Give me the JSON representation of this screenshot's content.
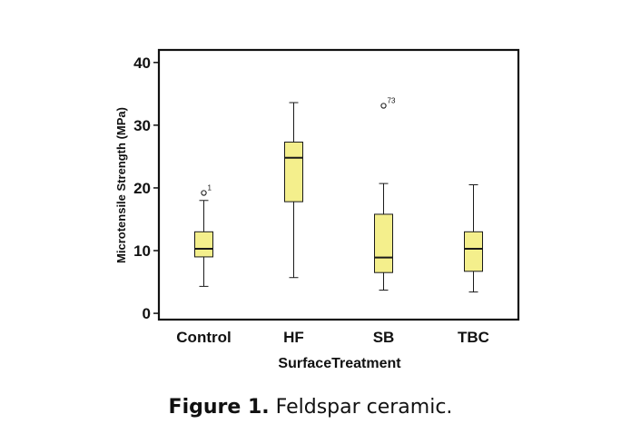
{
  "chart_data": {
    "type": "boxplot",
    "xlabel": "SurfaceTreatment",
    "ylabel": "Microtensile Strength (MPa)",
    "ylim": [
      -1,
      42
    ],
    "yticks": [
      0,
      10,
      20,
      30,
      40
    ],
    "grid": false,
    "categories": [
      "Control",
      "HF",
      "SB",
      "TBC"
    ],
    "boxes": [
      {
        "category": "Control",
        "whisker_low": 4.3,
        "q1": 9.0,
        "median": 10.3,
        "q3": 13.0,
        "whisker_high": 18.0,
        "outliers": [
          {
            "value": 19.2,
            "label": "1"
          }
        ]
      },
      {
        "category": "HF",
        "whisker_low": 5.7,
        "q1": 17.8,
        "median": 24.8,
        "q3": 27.3,
        "whisker_high": 33.6,
        "outliers": []
      },
      {
        "category": "SB",
        "whisker_low": 3.7,
        "q1": 6.5,
        "median": 8.9,
        "q3": 15.8,
        "whisker_high": 20.7,
        "outliers": [
          {
            "value": 33.1,
            "label": "73"
          }
        ]
      },
      {
        "category": "TBC",
        "whisker_low": 3.4,
        "q1": 6.7,
        "median": 10.3,
        "q3": 13.0,
        "whisker_high": 20.5,
        "outliers": []
      }
    ],
    "box_color": "#f4ef8c",
    "line_color": "#1a1a1a"
  },
  "caption": {
    "label": "Figure 1.",
    "text": "Feldspar ceramic."
  }
}
